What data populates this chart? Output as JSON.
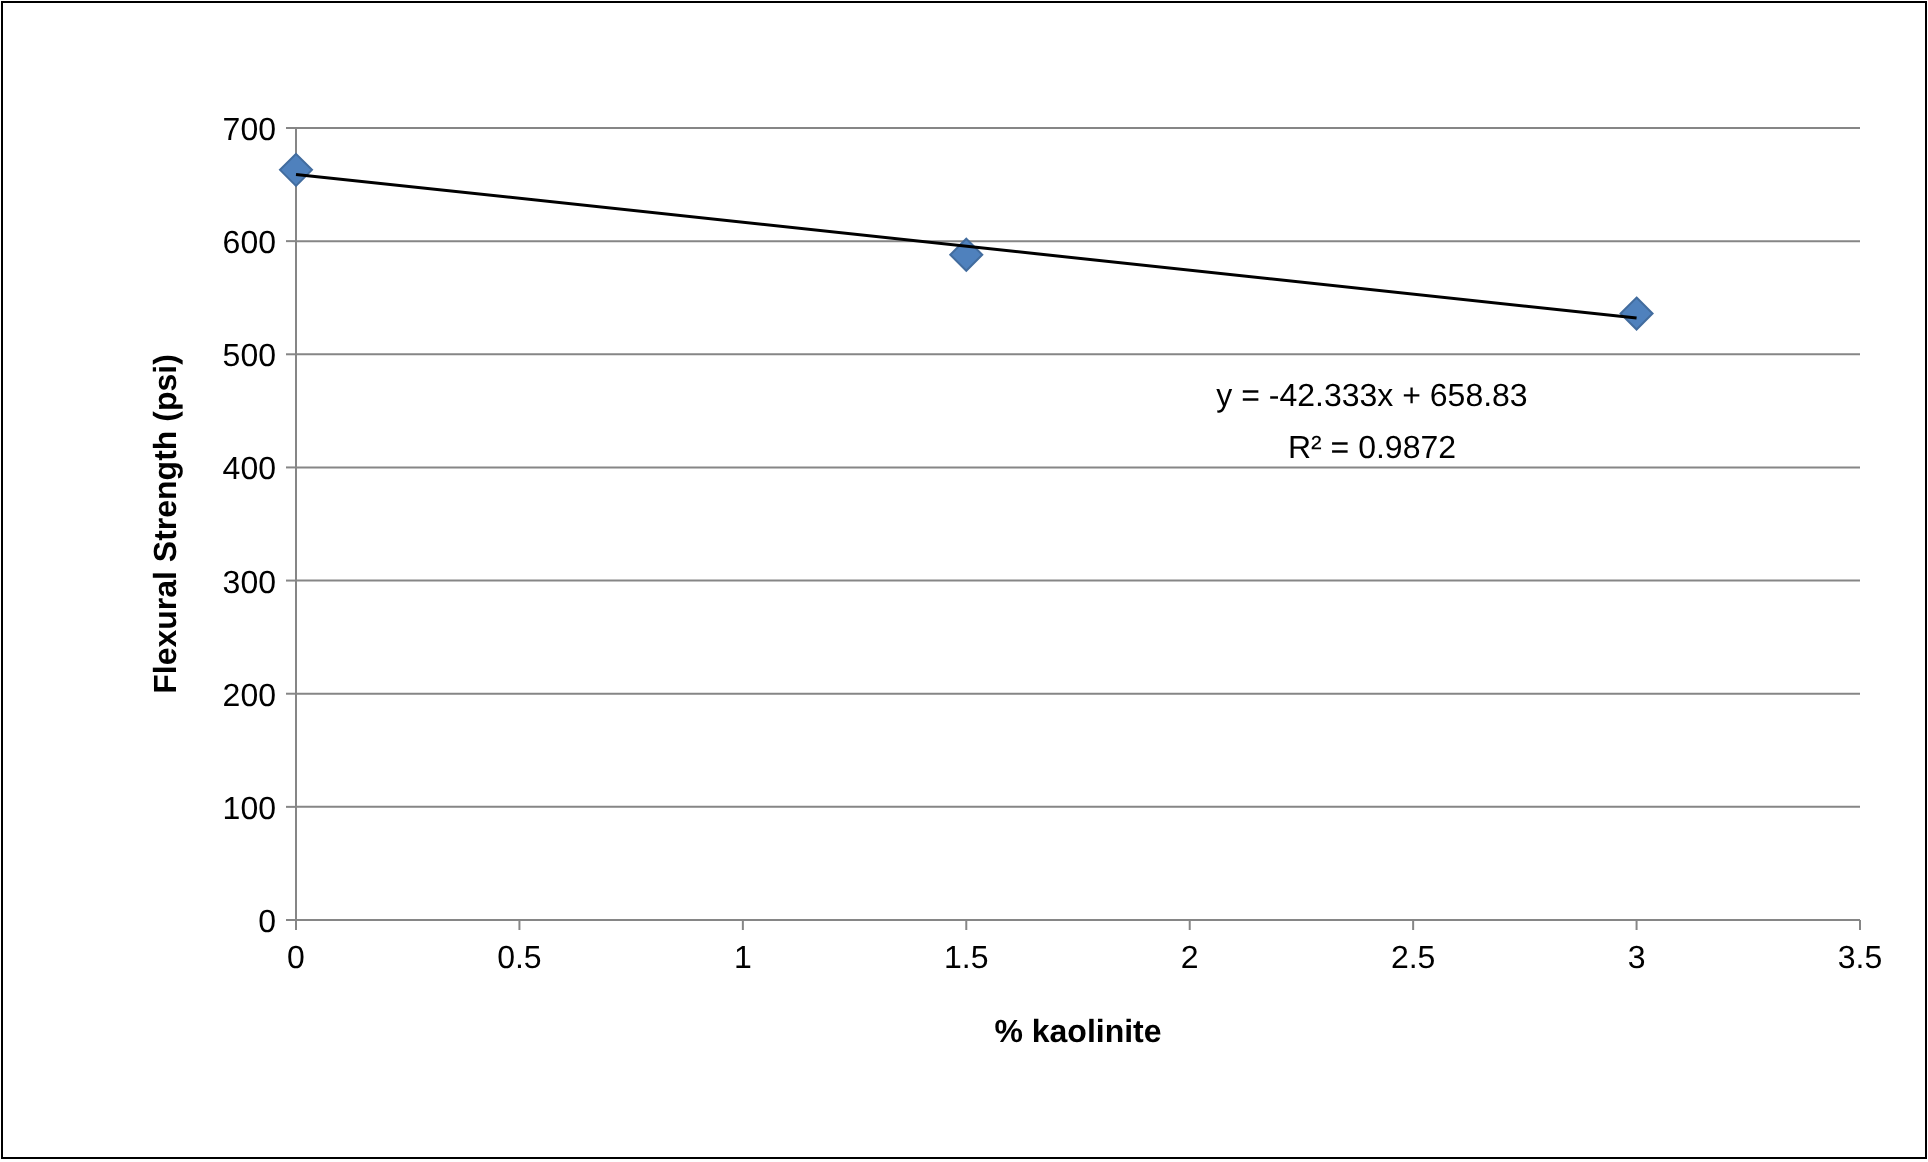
{
  "chart_data": {
    "type": "scatter",
    "xlabel": "% kaolinite",
    "ylabel": "Flexural Strength (psi)",
    "series": [
      {
        "color": "#4f81bd",
        "x": [
          0,
          1.5,
          3
        ],
        "values": [
          663,
          588,
          536
        ],
        "marker": "diamond"
      },
      {
        "type": "line",
        "color": "#000000",
        "x": [
          0,
          3
        ],
        "values": [
          659,
          532
        ],
        "marker": "none",
        "line_style": "solid"
      }
    ],
    "xlim": [
      0,
      3.5
    ],
    "xticks": [
      0,
      0.5,
      1,
      1.5,
      2,
      2.5,
      3,
      3.5
    ],
    "ylim": [
      0,
      700
    ],
    "yticks": [
      0,
      100,
      200,
      300,
      400,
      500,
      600,
      700
    ],
    "grid": "y",
    "annotations": [
      "y = -42.333x + 658.83",
      "R² = 0.9872"
    ]
  }
}
